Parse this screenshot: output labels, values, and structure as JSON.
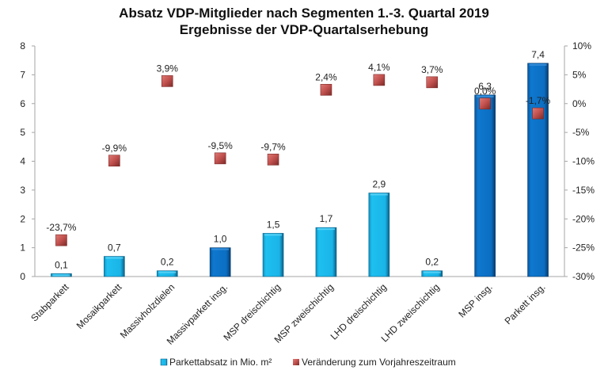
{
  "chart_data": {
    "type": "bar",
    "title": "Absatz VDP-Mitglieder nach Segmenten 1.-3. Quartal 2019",
    "subtitle": "Ergebnisse der VDP-Quartalserhebung",
    "categories": [
      "Stabparkett",
      "Mosaikparkett",
      "Massivholzdielen",
      "Massivparkett insg.",
      "MSP dreischichtig",
      "MSP zweischichtig",
      "LHD dreischichtig",
      "LHD zweischichtig",
      "MSP insg.",
      "Parkett insg."
    ],
    "series": [
      {
        "name": "Parkettabsatz in Mio. m²",
        "type": "bar",
        "axis": "left",
        "values": [
          0.1,
          0.7,
          0.2,
          1.0,
          1.5,
          1.7,
          2.9,
          0.2,
          6.3,
          7.4
        ],
        "labels": [
          "0,1",
          "0,7",
          "0,2",
          "1,0",
          "1,5",
          "1,7",
          "2,9",
          "0,2",
          "6,3",
          "7,4"
        ],
        "bar_kind": [
          "segment",
          "segment",
          "segment",
          "total",
          "segment",
          "segment",
          "segment",
          "segment",
          "total",
          "total"
        ]
      },
      {
        "name": "Veränderung zum Vorjahreszeitraum",
        "type": "scatter",
        "axis": "right",
        "values": [
          -23.7,
          -9.9,
          3.9,
          -9.5,
          -9.7,
          2.4,
          4.1,
          3.7,
          0.0,
          -1.7
        ],
        "labels": [
          "-23,7%",
          "-9,9%",
          "3,9%",
          "-9,5%",
          "-9,7%",
          "2,4%",
          "4,1%",
          "3,7%",
          "0,0%",
          "-1,7%"
        ]
      }
    ],
    "y_left": {
      "ylim": [
        0,
        8
      ],
      "ticks": [
        "0",
        "1",
        "2",
        "3",
        "4",
        "5",
        "6",
        "7",
        "8"
      ]
    },
    "y_right": {
      "ylim": [
        -30,
        10
      ],
      "ticks": [
        "-30%",
        "-25%",
        "-20%",
        "-15%",
        "-10%",
        "-5%",
        "0%",
        "5%",
        "10%"
      ]
    },
    "xlabel": "",
    "ylabel": "",
    "grid": false,
    "legend_position": "bottom",
    "colors": {
      "segment_bar": "#1ab8ec",
      "total_bar": "#0b6fc4",
      "marker": "#c0504d"
    }
  }
}
